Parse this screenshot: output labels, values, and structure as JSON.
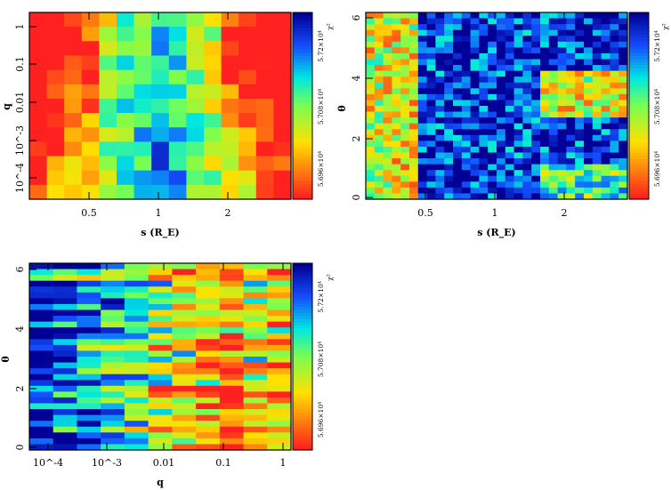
{
  "chart_data": [
    {
      "type": "heatmap",
      "panel": "top-left",
      "title": "",
      "xlabel": "s (R_E)",
      "ylabel": "q",
      "x_tick_labels": [
        "0.5",
        "1",
        "2"
      ],
      "x_tick_values": [
        0.5,
        1,
        2
      ],
      "y_tick_labels": [
        "1",
        "0.1",
        "0.01",
        "10^-3",
        "10^-4"
      ],
      "y_tick_values": [
        1,
        0.1,
        0.01,
        0.001,
        0.0001
      ],
      "colorbar": {
        "label": "χ²",
        "tick_labels": [
          "5.72×10⁴",
          "5.708×10⁴",
          "5.696×10⁴"
        ],
        "colors_low_to_high": [
          "#ff2020",
          "#ffe000",
          "#00e8e0",
          "#0000a0"
        ]
      },
      "grid": false
    },
    {
      "type": "heatmap",
      "panel": "top-right",
      "title": "",
      "xlabel": "s (R_E)",
      "ylabel": "θ",
      "x_tick_labels": [
        "0.5",
        "1",
        "2"
      ],
      "x_tick_values": [
        0.5,
        1,
        2
      ],
      "y_tick_labels": [
        "6",
        "4",
        "2",
        "0"
      ],
      "y_tick_values": [
        6,
        4,
        2,
        0
      ],
      "colorbar": {
        "label": "χ²",
        "tick_labels": [
          "5.72×10⁴",
          "5.708×10⁴",
          "5.696×10⁴"
        ],
        "colors_low_to_high": [
          "#ff2020",
          "#ffe000",
          "#00e8e0",
          "#0000a0"
        ]
      },
      "grid": false
    },
    {
      "type": "heatmap",
      "panel": "bottom-left",
      "title": "",
      "xlabel": "q",
      "ylabel": "θ",
      "x_tick_labels": [
        "10^-4",
        "10^-3",
        "0.01",
        "0.1",
        "1"
      ],
      "x_tick_values": [
        0.0001,
        0.001,
        0.01,
        0.1,
        1
      ],
      "y_tick_labels": [
        "6",
        "4",
        "2",
        "0"
      ],
      "y_tick_values": [
        6,
        4,
        2,
        0
      ],
      "colorbar": {
        "label": "χ²",
        "tick_labels": [
          "5.72×10⁴",
          "5.708×10⁴",
          "5.696×10⁴"
        ],
        "colors_low_to_high": [
          "#ff2020",
          "#ffe000",
          "#00e8e0",
          "#0000a0"
        ]
      },
      "grid": false
    }
  ]
}
